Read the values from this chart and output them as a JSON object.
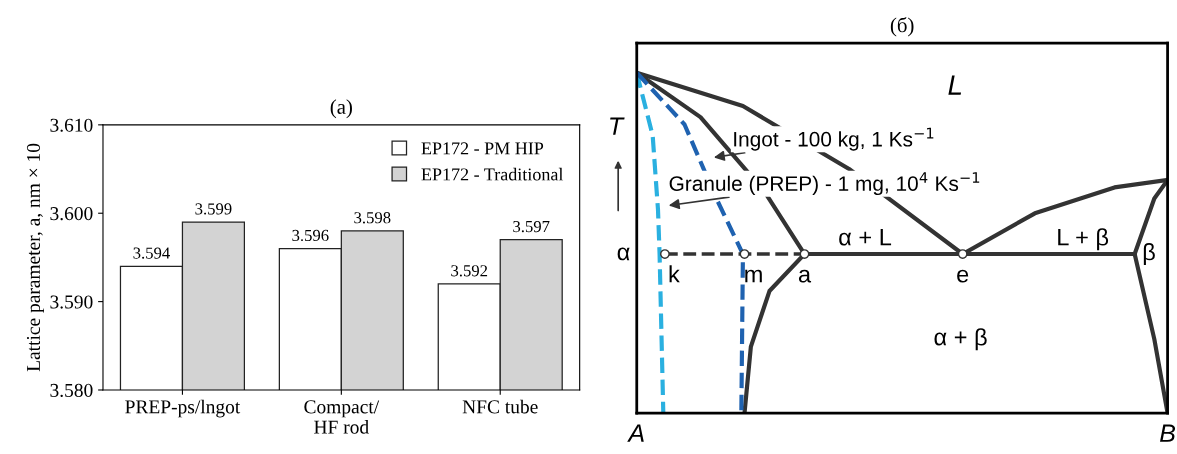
{
  "chart_data": [
    {
      "type": "bar",
      "title": "(a)",
      "ylabel": "Lattice parameter, a, nm × 10",
      "categories": [
        "PREP-ps/lngot",
        "Compact/\nHF rod",
        "NFC tube"
      ],
      "series": [
        {
          "name": "EP172 - PM HIP",
          "color": "#ffffff",
          "values": [
            3.594,
            3.596,
            3.592
          ]
        },
        {
          "name": "EP172 - Traditional",
          "color": "#d3d3d3",
          "values": [
            3.599,
            3.598,
            3.597
          ]
        }
      ],
      "ylim": [
        3.58,
        3.61
      ],
      "yticks": [
        {
          "value": 3.58,
          "label": "3.580"
        },
        {
          "value": 3.59,
          "label": "3.590"
        },
        {
          "value": 3.6,
          "label": "3.600"
        },
        {
          "value": 3.61,
          "label": "3.610"
        }
      ],
      "data_labels": true,
      "legend": "top right",
      "grid": false
    },
    {
      "type": "other",
      "title": "(б)",
      "annotations": [
        "L",
        "T",
        "Ingot - 100 kg, 1 Ks$^{−1}$",
        "Granule (PREP) - 1 mg, 10$^{4}$ Ks$^{−1}$",
        "α + L",
        "L + β",
        "α",
        "k",
        "m",
        "a",
        "e",
        "β",
        "α + β",
        "A",
        "B"
      ]
    }
  ]
}
